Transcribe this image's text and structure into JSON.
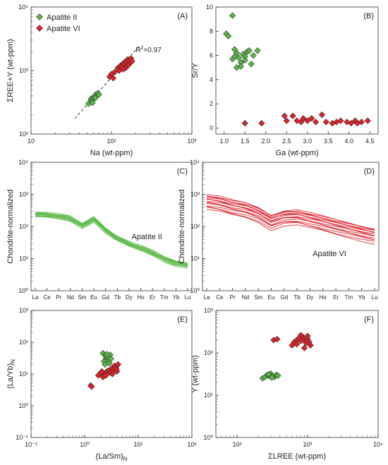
{
  "colors": {
    "apatite_ii": "#5ab848",
    "apatite_vi": "#e0202a",
    "axis": "#333333"
  },
  "legend": {
    "items": [
      {
        "label": "Apatite II",
        "color": "#5ab848"
      },
      {
        "label": "Apatite VI",
        "color": "#e0202a"
      }
    ]
  },
  "chart_data": [
    {
      "id": "A",
      "type": "scatter",
      "panel_label": "(A)",
      "xlabel": "Na (wt-ppm)",
      "ylabel": "ΣREE+Y (wt-ppm)",
      "xscale": "log",
      "yscale": "log",
      "xlim": [
        10,
        1000
      ],
      "ylim": [
        100,
        10000
      ],
      "xticks": [
        {
          "v": 10,
          "label": "10"
        },
        {
          "v": 100,
          "label": "10²"
        },
        {
          "v": 1000,
          "label": "10³"
        }
      ],
      "yticks": [
        {
          "v": 100,
          "label": "10²"
        },
        {
          "v": 1000,
          "label": "10³"
        },
        {
          "v": 10000,
          "label": "10⁴"
        }
      ],
      "annotation": "R²=0.97",
      "trendline": [
        [
          35,
          175
        ],
        [
          220,
          2400
        ]
      ],
      "series": [
        {
          "name": "Apatite II",
          "color": "#5ab848",
          "points": [
            [
              52,
              300
            ],
            [
              55,
              330
            ],
            [
              56,
              360
            ],
            [
              58,
              350
            ],
            [
              60,
              380
            ],
            [
              62,
              400
            ],
            [
              64,
              420
            ],
            [
              66,
              410
            ],
            [
              68,
              440
            ],
            [
              70,
              420
            ],
            [
              58,
              310
            ],
            [
              63,
              370
            ]
          ]
        },
        {
          "name": "Apatite VI",
          "color": "#e0202a",
          "points": [
            [
              95,
              800
            ],
            [
              100,
              880
            ],
            [
              105,
              760
            ],
            [
              110,
              950
            ],
            [
              120,
              1100
            ],
            [
              125,
              1000
            ],
            [
              130,
              1200
            ],
            [
              135,
              1150
            ],
            [
              140,
              1300
            ],
            [
              145,
              1250
            ],
            [
              150,
              1400
            ],
            [
              155,
              1350
            ],
            [
              160,
              1500
            ],
            [
              165,
              1450
            ],
            [
              170,
              1300
            ],
            [
              175,
              1550
            ],
            [
              180,
              1400
            ],
            [
              150,
              1100
            ],
            [
              160,
              1200
            ],
            [
              140,
              1050
            ]
          ]
        }
      ]
    },
    {
      "id": "B",
      "type": "scatter",
      "panel_label": "(B)",
      "xlabel": "Ga (wt-ppm)",
      "ylabel": "Sr/Y",
      "xscale": "linear",
      "yscale": "linear",
      "xlim": [
        0.8,
        4.7
      ],
      "ylim": [
        -0.5,
        10
      ],
      "xticks": [
        {
          "v": 1,
          "label": "1.0"
        },
        {
          "v": 1.5,
          "label": "1.5"
        },
        {
          "v": 2,
          "label": "2.0"
        },
        {
          "v": 2.5,
          "label": "2.5"
        },
        {
          "v": 3,
          "label": "3.0"
        },
        {
          "v": 3.5,
          "label": "3.5"
        },
        {
          "v": 4,
          "label": "4.0"
        },
        {
          "v": 4.5,
          "label": "4.5"
        }
      ],
      "yticks": [
        {
          "v": 0,
          "label": "0"
        },
        {
          "v": 2,
          "label": "2"
        },
        {
          "v": 4,
          "label": "4"
        },
        {
          "v": 6,
          "label": "6"
        },
        {
          "v": 8,
          "label": "8"
        },
        {
          "v": 10,
          "label": "10"
        }
      ],
      "series": [
        {
          "name": "Apatite II",
          "color": "#5ab848",
          "points": [
            [
              1.05,
              7.8
            ],
            [
              1.1,
              7.6
            ],
            [
              1.2,
              9.3
            ],
            [
              1.25,
              6.5
            ],
            [
              1.3,
              6.2
            ],
            [
              1.35,
              5.8
            ],
            [
              1.4,
              5.4
            ],
            [
              1.45,
              6.1
            ],
            [
              1.5,
              5.9
            ],
            [
              1.55,
              6.3
            ],
            [
              1.6,
              6.4
            ],
            [
              1.7,
              6.0
            ],
            [
              1.2,
              5.7
            ],
            [
              1.3,
              5.0
            ],
            [
              1.4,
              5.1
            ],
            [
              1.5,
              5.6
            ],
            [
              1.65,
              5.3
            ],
            [
              1.8,
              6.4
            ],
            [
              1.25,
              5.9
            ]
          ]
        },
        {
          "name": "Apatite VI",
          "color": "#e0202a",
          "points": [
            [
              1.5,
              0.4
            ],
            [
              1.9,
              0.4
            ],
            [
              2.45,
              1.0
            ],
            [
              2.5,
              0.6
            ],
            [
              2.65,
              1.0
            ],
            [
              2.75,
              0.6
            ],
            [
              2.85,
              0.5
            ],
            [
              2.9,
              0.8
            ],
            [
              3.0,
              0.6
            ],
            [
              3.1,
              0.8
            ],
            [
              3.2,
              0.5
            ],
            [
              3.35,
              1.1
            ],
            [
              3.45,
              0.5
            ],
            [
              3.6,
              0.4
            ],
            [
              3.7,
              0.5
            ],
            [
              3.8,
              0.6
            ],
            [
              3.95,
              0.5
            ],
            [
              4.05,
              0.4
            ],
            [
              4.15,
              0.6
            ],
            [
              4.3,
              0.5
            ],
            [
              4.45,
              0.6
            ],
            [
              4.2,
              0.4
            ]
          ]
        }
      ]
    },
    {
      "id": "C",
      "type": "line",
      "panel_label": "(C)",
      "series_label": "Apatite II",
      "xlabel": "",
      "ylabel": "Chondrite-normalized",
      "color": "#5ab848",
      "yscale": "log",
      "ylim": [
        1,
        10000
      ],
      "categories": [
        "La",
        "Ce",
        "Pr",
        "Nd",
        "Sm",
        "Eu",
        "Gd",
        "Tb",
        "Dy",
        "Ho",
        "Er",
        "Tm",
        "Yb",
        "Lu"
      ],
      "yticks": [
        {
          "v": 1,
          "label": "10⁰"
        },
        {
          "v": 10,
          "label": "10¹"
        },
        {
          "v": 100,
          "label": "10²"
        },
        {
          "v": 1000,
          "label": "10³"
        },
        {
          "v": 10000,
          "label": "10⁴"
        }
      ],
      "base_profile": [
        250,
        240,
        215,
        185,
        110,
        180,
        80,
        45,
        30,
        22,
        16,
        10,
        7.5,
        6.5
      ],
      "band_low": 0.8,
      "band_high": 1.12,
      "line_count": 12
    },
    {
      "id": "D",
      "type": "line",
      "panel_label": "(D)",
      "series_label": "Apatite VI",
      "xlabel": "",
      "ylabel": "Chondrite-normalized",
      "color": "#e0202a",
      "yscale": "log",
      "ylim": [
        1,
        10000
      ],
      "categories": [
        "La",
        "Ce",
        "Pr",
        "Nd",
        "Sm",
        "Eu",
        "Gd",
        "Tb",
        "Dy",
        "Ho",
        "Er",
        "Tm",
        "Yb",
        "Lu"
      ],
      "yticks": [
        {
          "v": 1,
          "label": "10⁰"
        },
        {
          "v": 10,
          "label": "10¹"
        },
        {
          "v": 100,
          "label": "10²"
        },
        {
          "v": 1000,
          "label": "10³"
        },
        {
          "v": 10000,
          "label": "10⁴"
        }
      ],
      "base_profile": [
        750,
        650,
        500,
        420,
        300,
        175,
        240,
        250,
        200,
        160,
        125,
        100,
        80,
        65
      ],
      "band_low": 0.45,
      "band_high": 1.3,
      "line_count": 16
    },
    {
      "id": "E",
      "type": "scatter",
      "panel_label": "(E)",
      "xlabel": "(La/Sm)N",
      "ylabel": "(La/Yb)N",
      "xscale": "log",
      "yscale": "log",
      "xlim": [
        0.1,
        100
      ],
      "ylim": [
        0.1,
        1000
      ],
      "xticks": [
        {
          "v": 0.1,
          "label": "10⁻¹"
        },
        {
          "v": 1,
          "label": "10⁰"
        },
        {
          "v": 10,
          "label": "10¹"
        },
        {
          "v": 100,
          "label": "10²"
        }
      ],
      "yticks": [
        {
          "v": 0.1,
          "label": "10⁻¹"
        },
        {
          "v": 1,
          "label": "10⁰"
        },
        {
          "v": 10,
          "label": "10¹"
        },
        {
          "v": 100,
          "label": "10²"
        },
        {
          "v": 1000,
          "label": "10³"
        }
      ],
      "series": [
        {
          "name": "Apatite II",
          "color": "#5ab848",
          "points": [
            [
              2.2,
              45
            ],
            [
              2.4,
              38
            ],
            [
              2.5,
              30
            ],
            [
              2.6,
              35
            ],
            [
              2.7,
              28
            ],
            [
              2.8,
              32
            ],
            [
              3.0,
              40
            ],
            [
              2.3,
              25
            ],
            [
              2.9,
              22
            ],
            [
              2.6,
              42
            ],
            [
              3.1,
              30
            ],
            [
              2.4,
              20
            ]
          ]
        },
        {
          "name": "Apatite VI",
          "color": "#e0202a",
          "points": [
            [
              1.3,
              4.3
            ],
            [
              1.35,
              4.0
            ],
            [
              1.8,
              9
            ],
            [
              2.0,
              11
            ],
            [
              2.2,
              8
            ],
            [
              2.4,
              10
            ],
            [
              2.6,
              12
            ],
            [
              2.8,
              13
            ],
            [
              3.0,
              11
            ],
            [
              3.2,
              15
            ],
            [
              3.4,
              13
            ],
            [
              3.6,
              18
            ],
            [
              3.8,
              16
            ],
            [
              4.0,
              12
            ],
            [
              4.2,
              20
            ],
            [
              2.1,
              12
            ],
            [
              2.5,
              9
            ],
            [
              3.3,
              10
            ],
            [
              3.9,
              14
            ]
          ]
        }
      ]
    },
    {
      "id": "F",
      "type": "scatter",
      "panel_label": "(F)",
      "xlabel": "ΣLREE (wt-ppm)",
      "ylabel": "Y (wt-ppm)",
      "xscale": "log",
      "yscale": "log",
      "xlim": [
        50,
        10000
      ],
      "ylim": [
        1,
        1000
      ],
      "xticks": [
        {
          "v": 100,
          "label": "10²"
        },
        {
          "v": 1000,
          "label": "10³"
        },
        {
          "v": 10000,
          "label": "10⁴"
        }
      ],
      "yticks": [
        {
          "v": 1,
          "label": "10⁰"
        },
        {
          "v": 10,
          "label": "10¹"
        },
        {
          "v": 100,
          "label": "10²"
        },
        {
          "v": 1000,
          "label": "10³"
        }
      ],
      "series": [
        {
          "name": "Apatite II",
          "color": "#5ab848",
          "points": [
            [
              230,
              25
            ],
            [
              250,
              27
            ],
            [
              270,
              30
            ],
            [
              290,
              28
            ],
            [
              300,
              32
            ],
            [
              320,
              29
            ],
            [
              340,
              27
            ],
            [
              360,
              30
            ],
            [
              380,
              29
            ],
            [
              310,
              26
            ],
            [
              280,
              31
            ]
          ]
        },
        {
          "name": "Apatite VI",
          "color": "#e0202a",
          "points": [
            [
              330,
              200
            ],
            [
              370,
              210
            ],
            [
              600,
              150
            ],
            [
              650,
              180
            ],
            [
              700,
              200
            ],
            [
              750,
              220
            ],
            [
              800,
              190
            ],
            [
              850,
              240
            ],
            [
              900,
              200
            ],
            [
              950,
              170
            ],
            [
              1000,
              210
            ],
            [
              1050,
              180
            ],
            [
              1100,
              150
            ],
            [
              900,
              130
            ],
            [
              700,
              160
            ],
            [
              800,
              260
            ],
            [
              1000,
              250
            ]
          ]
        }
      ]
    }
  ]
}
